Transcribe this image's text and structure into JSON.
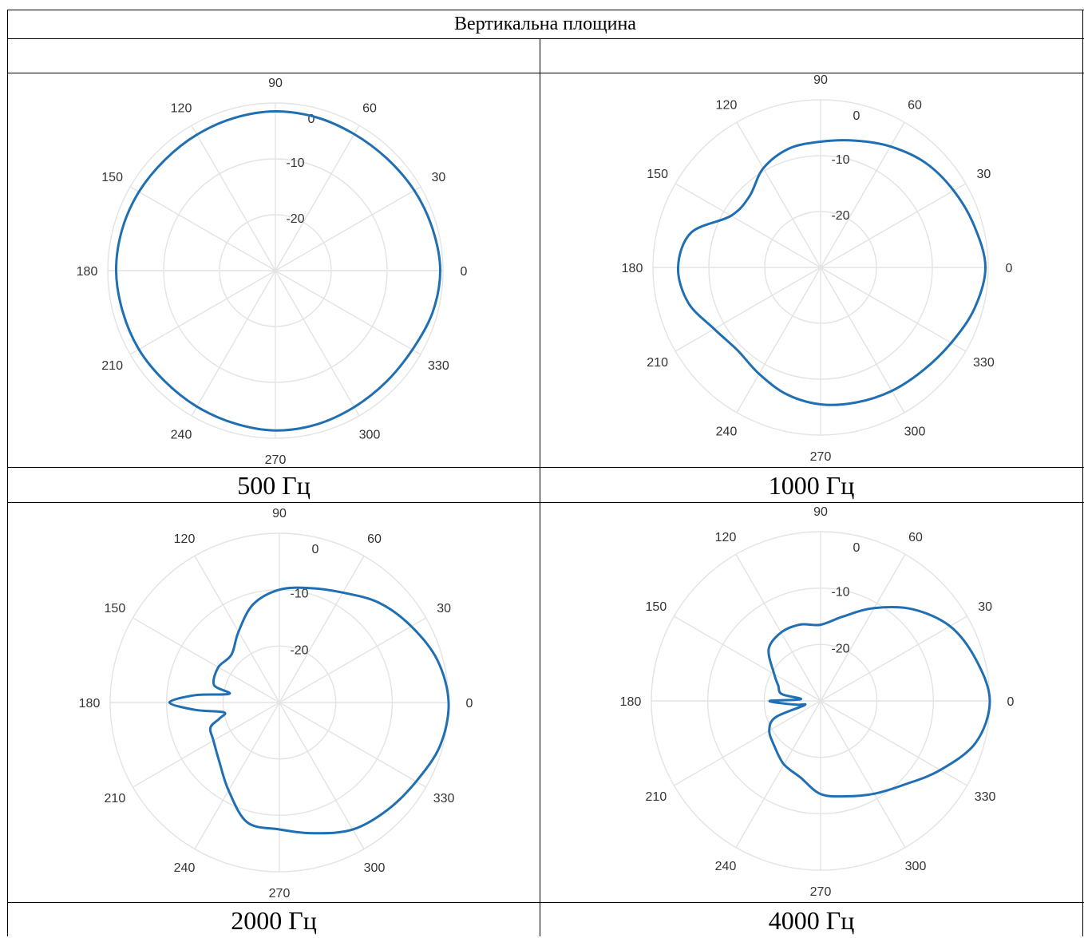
{
  "table": {
    "title": "Вертикальна площина",
    "captions": [
      "500 Гц",
      "1000 Гц",
      "2000 Гц",
      "4000 Гц"
    ]
  },
  "style": {
    "line_color": "#1f6fb2",
    "grid_color": "#e3e3e3"
  },
  "chart_data": [
    {
      "type": "polar",
      "title": "500 Гц",
      "theta_ticks_deg": [
        0,
        30,
        60,
        90,
        120,
        150,
        180,
        210,
        240,
        270,
        300,
        330
      ],
      "r_ticks": [
        0,
        -10,
        -20
      ],
      "r_range": [
        -30,
        0
      ],
      "grid": true,
      "series": [
        {
          "theta": [
            0,
            15,
            30,
            45,
            60,
            75,
            90,
            105,
            120,
            135,
            150,
            165,
            180,
            195,
            210,
            225,
            240,
            255,
            270,
            285,
            300,
            315,
            330,
            345
          ],
          "r": [
            -0.5,
            -0.9,
            -1.3,
            -1.7,
            -1.8,
            -1.6,
            -1.5,
            -1.7,
            -1.9,
            -2.0,
            -1.8,
            -1.6,
            -1.5,
            -1.7,
            -1.8,
            -2.0,
            -1.9,
            -1.7,
            -1.4,
            -1.5,
            -1.8,
            -1.9,
            -1.7,
            -0.9
          ]
        }
      ]
    },
    {
      "type": "polar",
      "title": "1000 Гц",
      "theta_ticks_deg": [
        0,
        30,
        60,
        90,
        120,
        150,
        180,
        210,
        240,
        270,
        300,
        330
      ],
      "r_ticks": [
        0,
        -10,
        -20
      ],
      "r_range": [
        -30,
        0
      ],
      "grid": true,
      "series": [
        {
          "theta": [
            0,
            15,
            30,
            45,
            60,
            75,
            90,
            105,
            120,
            135,
            150,
            165,
            180,
            195,
            210,
            225,
            240,
            255,
            270,
            285,
            300,
            315,
            330,
            345
          ],
          "r": [
            -0.5,
            -1.5,
            -2.5,
            -3.5,
            -5.0,
            -6.5,
            -7.5,
            -8.0,
            -9.5,
            -12.0,
            -11.5,
            -6.0,
            -4.5,
            -5.5,
            -8.0,
            -9.0,
            -8.0,
            -6.5,
            -5.5,
            -5.0,
            -4.5,
            -4.0,
            -3.0,
            -1.5
          ]
        }
      ]
    },
    {
      "type": "polar",
      "title": "2000 Гц",
      "theta_ticks_deg": [
        0,
        30,
        60,
        90,
        120,
        150,
        180,
        210,
        240,
        270,
        300,
        330
      ],
      "r_ticks": [
        0,
        -10,
        -20
      ],
      "r_range": [
        -30,
        0
      ],
      "grid": true,
      "series": [
        {
          "theta": [
            0,
            15,
            30,
            45,
            60,
            75,
            90,
            105,
            120,
            135,
            150,
            165,
            170,
            175,
            180,
            185,
            190,
            195,
            200,
            210,
            225,
            240,
            255,
            270,
            285,
            300,
            315,
            330,
            345
          ],
          "r": [
            0,
            -1.0,
            -3.0,
            -5.0,
            -7.5,
            -9.0,
            -10.0,
            -12.0,
            -15.5,
            -18.0,
            -17.5,
            -18.0,
            -21.0,
            -15.0,
            -10.5,
            -15.0,
            -20.0,
            -19.0,
            -17.0,
            -16.5,
            -15.0,
            -12.0,
            -8.0,
            -7.5,
            -6.0,
            -4.0,
            -3.0,
            -2.0,
            -0.5
          ]
        }
      ]
    },
    {
      "type": "polar",
      "title": "4000 Гц",
      "theta_ticks_deg": [
        0,
        30,
        60,
        90,
        120,
        150,
        180,
        210,
        240,
        270,
        300,
        330
      ],
      "r_ticks": [
        0,
        -10,
        -20
      ],
      "r_range": [
        -30,
        0
      ],
      "grid": true,
      "series": [
        {
          "theta": [
            0,
            15,
            30,
            45,
            60,
            75,
            90,
            105,
            120,
            135,
            150,
            160,
            170,
            175,
            180,
            185,
            190,
            195,
            200,
            210,
            225,
            240,
            255,
            270,
            285,
            300,
            315,
            330,
            345
          ],
          "r": [
            0,
            -1.5,
            -3.5,
            -7.0,
            -11.0,
            -14.5,
            -16.5,
            -16.0,
            -16.0,
            -17.0,
            -20.5,
            -22.0,
            -23.0,
            -26.5,
            -21.0,
            -24.0,
            -26.0,
            -27.0,
            -21.5,
            -19.5,
            -18.5,
            -17.0,
            -16.0,
            -13.5,
            -12.5,
            -11.0,
            -9.0,
            -5.5,
            -1.5
          ]
        }
      ]
    }
  ]
}
